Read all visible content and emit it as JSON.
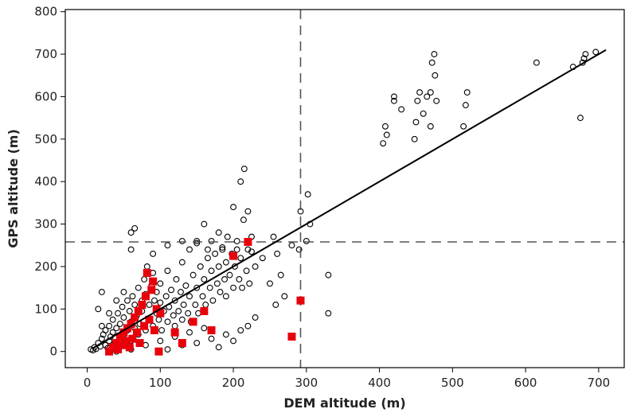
{
  "chart_data": {
    "type": "scatter",
    "title": "",
    "xlabel": "DEM altitude (m)",
    "ylabel": "GPS altitude (m)",
    "xlim": [
      -30,
      735
    ],
    "ylim": [
      -38,
      805
    ],
    "x_ticks": [
      0,
      100,
      200,
      300,
      400,
      500,
      600,
      700
    ],
    "y_ticks": [
      0,
      100,
      200,
      300,
      400,
      500,
      600,
      700,
      800
    ],
    "grid": false,
    "legend": "none",
    "colors": {
      "open_points": "#000000",
      "highlight_points": "#e8000b",
      "line": "#000000",
      "reference_lines": "#555555"
    },
    "reference_lines": {
      "x": 292,
      "y": 258
    },
    "regression_line": {
      "x": [
        10,
        710
      ],
      "y": [
        10,
        710
      ]
    },
    "series": [
      {
        "marker": "open-circle",
        "points": [
          [
            5,
            5
          ],
          [
            8,
            3
          ],
          [
            10,
            10
          ],
          [
            12,
            6
          ],
          [
            15,
            20
          ],
          [
            18,
            12
          ],
          [
            20,
            30
          ],
          [
            22,
            40
          ],
          [
            25,
            15
          ],
          [
            25,
            50
          ],
          [
            28,
            8
          ],
          [
            30,
            25
          ],
          [
            30,
            60
          ],
          [
            32,
            35
          ],
          [
            35,
            45
          ],
          [
            35,
            75
          ],
          [
            38,
            20
          ],
          [
            40,
            55
          ],
          [
            40,
            10
          ],
          [
            42,
            90
          ],
          [
            45,
            30
          ],
          [
            45,
            65
          ],
          [
            48,
            105
          ],
          [
            50,
            40
          ],
          [
            50,
            80
          ],
          [
            52,
            15
          ],
          [
            55,
            120
          ],
          [
            55,
            50
          ],
          [
            58,
            95
          ],
          [
            60,
            70
          ],
          [
            60,
            25
          ],
          [
            62,
            130
          ],
          [
            65,
            55
          ],
          [
            65,
            110
          ],
          [
            68,
            85
          ],
          [
            70,
            40
          ],
          [
            70,
            150
          ],
          [
            72,
            65
          ],
          [
            75,
            120
          ],
          [
            75,
            95
          ],
          [
            78,
            170
          ],
          [
            80,
            50
          ],
          [
            80,
            135
          ],
          [
            82,
            200
          ],
          [
            85,
            75
          ],
          [
            85,
            110
          ],
          [
            88,
            155
          ],
          [
            90,
            60
          ],
          [
            90,
            185
          ],
          [
            92,
            120
          ],
          [
            95,
            90
          ],
          [
            95,
            140
          ],
          [
            98,
            75
          ],
          [
            100,
            115
          ],
          [
            100,
            160
          ],
          [
            102,
            50
          ],
          [
            105,
            95
          ],
          [
            108,
            130
          ],
          [
            110,
            70
          ],
          [
            110,
            190
          ],
          [
            112,
            105
          ],
          [
            115,
            145
          ],
          [
            118,
            85
          ],
          [
            120,
            120
          ],
          [
            120,
            60
          ],
          [
            122,
            170
          ],
          [
            125,
            95
          ],
          [
            128,
            140
          ],
          [
            130,
            75
          ],
          [
            130,
            210
          ],
          [
            132,
            110
          ],
          [
            135,
            155
          ],
          [
            138,
            90
          ],
          [
            140,
            130
          ],
          [
            140,
            240
          ],
          [
            142,
            70
          ],
          [
            145,
            180
          ],
          [
            148,
            110
          ],
          [
            150,
            150
          ],
          [
            150,
            260
          ],
          [
            152,
            90
          ],
          [
            155,
            200
          ],
          [
            158,
            130
          ],
          [
            160,
            170
          ],
          [
            160,
            300
          ],
          [
            162,
            110
          ],
          [
            165,
            220
          ],
          [
            168,
            150
          ],
          [
            170,
            190
          ],
          [
            170,
            260
          ],
          [
            172,
            120
          ],
          [
            175,
            230
          ],
          [
            178,
            160
          ],
          [
            180,
            200
          ],
          [
            180,
            280
          ],
          [
            182,
            140
          ],
          [
            185,
            240
          ],
          [
            188,
            170
          ],
          [
            190,
            210
          ],
          [
            190,
            130
          ],
          [
            192,
            270
          ],
          [
            195,
            180
          ],
          [
            198,
            230
          ],
          [
            200,
            150
          ],
          [
            200,
            340
          ],
          [
            202,
            200
          ],
          [
            205,
            260
          ],
          [
            208,
            170
          ],
          [
            210,
            220
          ],
          [
            210,
            400
          ],
          [
            212,
            150
          ],
          [
            214,
            310
          ],
          [
            215,
            430
          ],
          [
            218,
            190
          ],
          [
            220,
            240
          ],
          [
            220,
            330
          ],
          [
            222,
            160
          ],
          [
            225,
            270
          ],
          [
            230,
            200
          ],
          [
            240,
            220
          ],
          [
            250,
            160
          ],
          [
            255,
            270
          ],
          [
            258,
            110
          ],
          [
            260,
            230
          ],
          [
            265,
            180
          ],
          [
            270,
            130
          ],
          [
            280,
            250
          ],
          [
            290,
            240
          ],
          [
            292,
            330
          ],
          [
            300,
            260
          ],
          [
            302,
            370
          ],
          [
            305,
            300
          ],
          [
            330,
            180
          ],
          [
            330,
            90
          ],
          [
            405,
            490
          ],
          [
            408,
            530
          ],
          [
            410,
            510
          ],
          [
            420,
            590
          ],
          [
            420,
            600
          ],
          [
            430,
            570
          ],
          [
            448,
            500
          ],
          [
            450,
            540
          ],
          [
            452,
            590
          ],
          [
            455,
            610
          ],
          [
            460,
            560
          ],
          [
            465,
            600
          ],
          [
            470,
            530
          ],
          [
            470,
            610
          ],
          [
            472,
            680
          ],
          [
            475,
            700
          ],
          [
            476,
            650
          ],
          [
            478,
            590
          ],
          [
            515,
            530
          ],
          [
            518,
            580
          ],
          [
            520,
            610
          ],
          [
            615,
            680
          ],
          [
            665,
            670
          ],
          [
            675,
            550
          ],
          [
            678,
            680
          ],
          [
            680,
            690
          ],
          [
            682,
            700
          ],
          [
            696,
            705
          ],
          [
            40,
            0
          ],
          [
            60,
            5
          ],
          [
            80,
            15
          ],
          [
            100,
            25
          ],
          [
            120,
            35
          ],
          [
            140,
            45
          ],
          [
            130,
            15
          ],
          [
            110,
            5
          ],
          [
            150,
            20
          ],
          [
            170,
            30
          ],
          [
            190,
            40
          ],
          [
            210,
            50
          ],
          [
            200,
            25
          ],
          [
            180,
            10
          ],
          [
            220,
            60
          ],
          [
            230,
            80
          ],
          [
            160,
            55
          ],
          [
            60,
            240
          ],
          [
            60,
            280
          ],
          [
            65,
            290
          ],
          [
            90,
            230
          ],
          [
            110,
            250
          ],
          [
            130,
            260
          ],
          [
            150,
            255
          ],
          [
            165,
            240
          ],
          [
            185,
            245
          ],
          [
            205,
            240
          ],
          [
            225,
            235
          ],
          [
            50,
            140
          ],
          [
            40,
            120
          ],
          [
            30,
            90
          ],
          [
            20,
            60
          ],
          [
            15,
            100
          ],
          [
            20,
            140
          ]
        ]
      },
      {
        "marker": "filled-square",
        "points": [
          [
            30,
            0
          ],
          [
            35,
            10
          ],
          [
            40,
            20
          ],
          [
            42,
            5
          ],
          [
            45,
            35
          ],
          [
            48,
            15
          ],
          [
            50,
            45
          ],
          [
            52,
            25
          ],
          [
            55,
            55
          ],
          [
            58,
            10
          ],
          [
            60,
            65
          ],
          [
            62,
            30
          ],
          [
            65,
            80
          ],
          [
            68,
            45
          ],
          [
            70,
            95
          ],
          [
            72,
            20
          ],
          [
            75,
            110
          ],
          [
            78,
            60
          ],
          [
            80,
            130
          ],
          [
            82,
            185
          ],
          [
            85,
            75
          ],
          [
            88,
            145
          ],
          [
            90,
            165
          ],
          [
            92,
            50
          ],
          [
            95,
            100
          ],
          [
            98,
            0
          ],
          [
            100,
            90
          ],
          [
            120,
            45
          ],
          [
            130,
            20
          ],
          [
            145,
            70
          ],
          [
            160,
            95
          ],
          [
            170,
            50
          ],
          [
            200,
            225
          ],
          [
            220,
            258
          ],
          [
            280,
            35
          ],
          [
            292,
            120
          ]
        ]
      }
    ]
  }
}
